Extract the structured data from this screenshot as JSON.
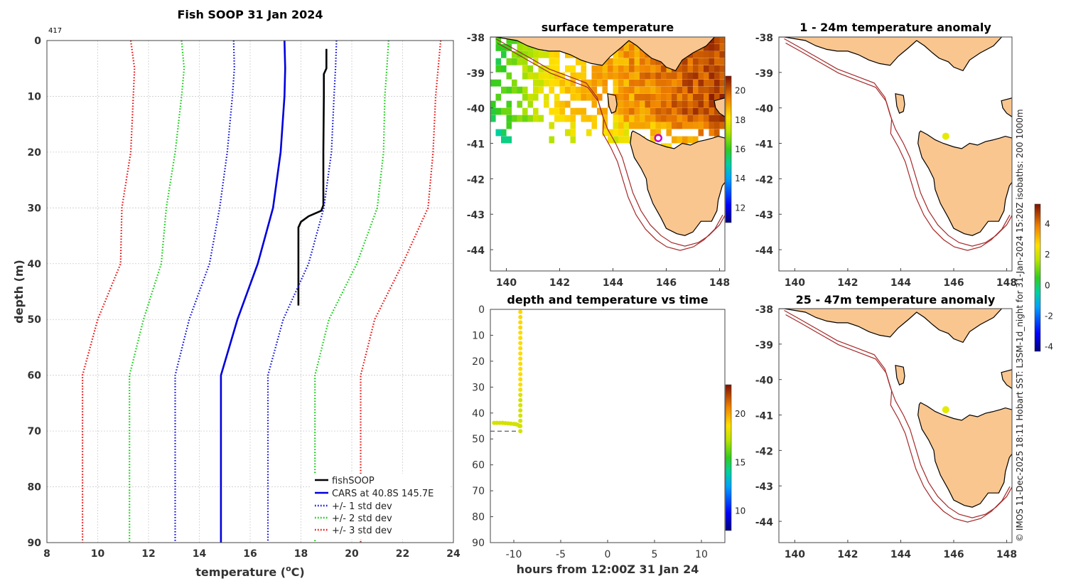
{
  "chart_data": [
    {
      "type": "line",
      "title": "Fish SOOP 31 Jan 2024",
      "corner_label": "417",
      "xlabel": "temperature (",
      "xlabel_sup": "o",
      "xlabel_tail": "C)",
      "ylabel": "depth (m)",
      "xlim": [
        8,
        24
      ],
      "ylim": [
        90,
        0
      ],
      "xticks": [
        "8",
        "10",
        "12",
        "14",
        "16",
        "18",
        "20",
        "22",
        "24"
      ],
      "yticks": [
        "0",
        "10",
        "20",
        "30",
        "40",
        "50",
        "60",
        "70",
        "80",
        "90"
      ],
      "series": [
        {
          "name": "fishSOOP",
          "color": "#000000",
          "dash": "solid",
          "points": [
            [
              19.0,
              1.5
            ],
            [
              19.0,
              5
            ],
            [
              18.9,
              6
            ],
            [
              18.9,
              10
            ],
            [
              18.88,
              20
            ],
            [
              18.88,
              29.5
            ],
            [
              18.8,
              30.5
            ],
            [
              18.3,
              31.5
            ],
            [
              18.0,
              32.5
            ],
            [
              17.9,
              33.5
            ],
            [
              17.9,
              40
            ],
            [
              17.9,
              47.5
            ]
          ]
        },
        {
          "name": "CARS at 40.8S 145.7E",
          "color": "#0000dd",
          "dash": "solid",
          "points": [
            [
              17.35,
              0
            ],
            [
              17.38,
              5
            ],
            [
              17.35,
              10
            ],
            [
              17.2,
              20
            ],
            [
              16.9,
              30
            ],
            [
              16.3,
              40
            ],
            [
              15.5,
              50
            ],
            [
              14.85,
              60
            ],
            [
              14.85,
              90
            ]
          ]
        },
        {
          "name": "+/- 1 std dev",
          "color": "#0000dd",
          "dash": "dot",
          "points": [
            [
              15.35,
              0
            ],
            [
              15.38,
              5
            ],
            [
              15.3,
              10
            ],
            [
              15.1,
              20
            ],
            [
              14.8,
              30
            ],
            [
              14.4,
              40
            ],
            [
              13.6,
              50
            ],
            [
              13.05,
              60
            ],
            [
              13.05,
              90
            ]
          ]
        },
        {
          "name": "",
          "color": "#0000dd",
          "dash": "dot",
          "points": [
            [
              19.4,
              0
            ],
            [
              19.36,
              5
            ],
            [
              19.3,
              10
            ],
            [
              19.2,
              20
            ],
            [
              18.9,
              30
            ],
            [
              18.3,
              40
            ],
            [
              17.3,
              50
            ],
            [
              16.7,
              60
            ],
            [
              16.7,
              90
            ]
          ]
        },
        {
          "name": "+/- 2 std dev",
          "color": "#00cc00",
          "dash": "dot",
          "points": [
            [
              13.3,
              0
            ],
            [
              13.4,
              5
            ],
            [
              13.3,
              10
            ],
            [
              13.05,
              20
            ],
            [
              12.7,
              30
            ],
            [
              12.5,
              40
            ],
            [
              11.8,
              50
            ],
            [
              11.25,
              60
            ],
            [
              11.25,
              90
            ]
          ]
        },
        {
          "name": "",
          "color": "#00cc00",
          "dash": "dot",
          "points": [
            [
              21.45,
              0
            ],
            [
              21.38,
              5
            ],
            [
              21.3,
              10
            ],
            [
              21.25,
              20
            ],
            [
              21.0,
              30
            ],
            [
              20.2,
              40
            ],
            [
              19.1,
              50
            ],
            [
              18.55,
              60
            ],
            [
              18.55,
              90
            ]
          ]
        },
        {
          "name": "+/- 3 std dev",
          "color": "#ee0000",
          "dash": "dot",
          "points": [
            [
              11.3,
              0
            ],
            [
              11.45,
              5
            ],
            [
              11.4,
              10
            ],
            [
              11.3,
              20
            ],
            [
              10.95,
              30
            ],
            [
              10.9,
              40
            ],
            [
              10.0,
              50
            ],
            [
              9.4,
              60
            ],
            [
              9.4,
              90
            ]
          ]
        },
        {
          "name": "",
          "color": "#ee0000",
          "dash": "dot",
          "points": [
            [
              23.5,
              0
            ],
            [
              23.4,
              5
            ],
            [
              23.3,
              10
            ],
            [
              23.2,
              20
            ],
            [
              23.0,
              30
            ],
            [
              22.0,
              40
            ],
            [
              20.9,
              50
            ],
            [
              20.35,
              60
            ],
            [
              20.35,
              90
            ]
          ]
        }
      ]
    },
    {
      "type": "heatmap",
      "title": "surface temperature",
      "xlim": [
        139.4,
        148.2
      ],
      "ylim": [
        -44.6,
        -38
      ],
      "xticks": [
        "140",
        "142",
        "144",
        "146",
        "148"
      ],
      "yticks": [
        "-38",
        "-39",
        "-40",
        "-41",
        "-42",
        "-43",
        "-44"
      ],
      "colorbar": {
        "min": 11,
        "max": 21,
        "ticks": [
          "12",
          "14",
          "16",
          "18",
          "20"
        ]
      },
      "marker": {
        "lon": 145.7,
        "lat": -40.85,
        "style": "open circle",
        "color": "#cc00cc"
      }
    },
    {
      "type": "heatmap",
      "title": "1 - 24m temperature anomaly",
      "xlim": [
        139.4,
        148.2
      ],
      "ylim": [
        -44.6,
        -38
      ],
      "xticks": [
        "140",
        "142",
        "144",
        "146",
        "148"
      ],
      "yticks": [
        "-38",
        "-39",
        "-40",
        "-41",
        "-42",
        "-43",
        "-44"
      ],
      "marker": {
        "lon": 145.7,
        "lat": -40.8,
        "value": 2.3,
        "color": "#e4ea00"
      }
    },
    {
      "type": "scatter",
      "title": "depth and temperature vs time",
      "xlabel": "hours from 12:00Z 31 Jan 24",
      "xlim": [
        -12.5,
        12.5
      ],
      "ylim": [
        90,
        0
      ],
      "xticks": [
        "-10",
        "-5",
        "0",
        "5",
        "10"
      ],
      "yticks": [
        "0",
        "10",
        "20",
        "30",
        "40",
        "50",
        "60",
        "70",
        "80",
        "90"
      ],
      "colorbar": {
        "min": 8,
        "max": 23,
        "ticks": [
          "10",
          "15",
          "20"
        ]
      },
      "points": [
        {
          "t": -9.3,
          "depth": 1,
          "temp": 19.0
        },
        {
          "t": -9.3,
          "depth": 3,
          "temp": 19.0
        },
        {
          "t": -9.3,
          "depth": 5,
          "temp": 19.0
        },
        {
          "t": -9.3,
          "depth": 7,
          "temp": 19.0
        },
        {
          "t": -9.3,
          "depth": 9,
          "temp": 18.9
        },
        {
          "t": -9.3,
          "depth": 11,
          "temp": 18.9
        },
        {
          "t": -9.3,
          "depth": 13,
          "temp": 18.9
        },
        {
          "t": -9.3,
          "depth": 15,
          "temp": 18.9
        },
        {
          "t": -9.3,
          "depth": 17,
          "temp": 18.9
        },
        {
          "t": -9.3,
          "depth": 19,
          "temp": 18.9
        },
        {
          "t": -9.3,
          "depth": 21,
          "temp": 18.9
        },
        {
          "t": -9.3,
          "depth": 23,
          "temp": 18.9
        },
        {
          "t": -9.3,
          "depth": 25,
          "temp": 18.9
        },
        {
          "t": -9.3,
          "depth": 27,
          "temp": 18.9
        },
        {
          "t": -9.3,
          "depth": 29,
          "temp": 18.9
        },
        {
          "t": -9.3,
          "depth": 31,
          "temp": 18.5
        },
        {
          "t": -9.3,
          "depth": 33,
          "temp": 18.0
        },
        {
          "t": -9.3,
          "depth": 35,
          "temp": 17.9
        },
        {
          "t": -9.3,
          "depth": 37,
          "temp": 17.9
        },
        {
          "t": -9.3,
          "depth": 39,
          "temp": 17.9
        },
        {
          "t": -9.3,
          "depth": 41,
          "temp": 17.9
        },
        {
          "t": -9.3,
          "depth": 43,
          "temp": 17.9
        },
        {
          "t": -9.3,
          "depth": 45,
          "temp": 17.9
        },
        {
          "t": -9.3,
          "depth": 47,
          "temp": 17.9
        },
        {
          "t": -9.4,
          "depth": 45,
          "temp": 17.9
        },
        {
          "t": -9.6,
          "depth": 44.5,
          "temp": 17.9
        },
        {
          "t": -9.8,
          "depth": 44.3,
          "temp": 17.9
        },
        {
          "t": -10.0,
          "depth": 44.2,
          "temp": 17.9
        },
        {
          "t": -10.3,
          "depth": 44.1,
          "temp": 17.9
        },
        {
          "t": -10.6,
          "depth": 44.0,
          "temp": 17.9
        },
        {
          "t": -10.9,
          "depth": 43.9,
          "temp": 17.9
        },
        {
          "t": -11.2,
          "depth": 43.8,
          "temp": 17.9
        },
        {
          "t": -11.5,
          "depth": 43.8,
          "temp": 17.9
        },
        {
          "t": -11.8,
          "depth": 43.8,
          "temp": 17.9
        },
        {
          "t": -12.1,
          "depth": 43.8,
          "temp": 17.9
        }
      ],
      "bottom_depth": {
        "t_start": -12.5,
        "t_end": -9.3,
        "depth": 47
      }
    },
    {
      "type": "heatmap",
      "title": "25 - 47m temperature anomaly",
      "xlim": [
        139.4,
        148.2
      ],
      "ylim": [
        -44.6,
        -38
      ],
      "xticks": [
        "140",
        "142",
        "144",
        "146",
        "148"
      ],
      "yticks": [
        "-38",
        "-39",
        "-40",
        "-41",
        "-42",
        "-43",
        "-44"
      ],
      "colorbar": {
        "min": -4.3,
        "max": 5.3,
        "ticks": [
          "4",
          "2",
          "0",
          "-2",
          "-4"
        ]
      },
      "marker": {
        "lon": 145.7,
        "lat": -40.85,
        "value": 2.2,
        "color": "#e4ea00"
      }
    }
  ],
  "legend": [
    "fishSOOP",
    "CARS at 40.8S 145.7E",
    "+/- 1 std dev",
    "+/- 2 std dev",
    "+/- 3 std dev"
  ],
  "footer": "© IMOS 11-Dec-2025 18:11 Hobart SST: L3SM-1d_night for 31-Jan-2024 15:20Z isobaths: 200  1000m",
  "colors": {
    "land": "#f9c690",
    "isobath": "#a52a2a",
    "coast": "#000000"
  }
}
